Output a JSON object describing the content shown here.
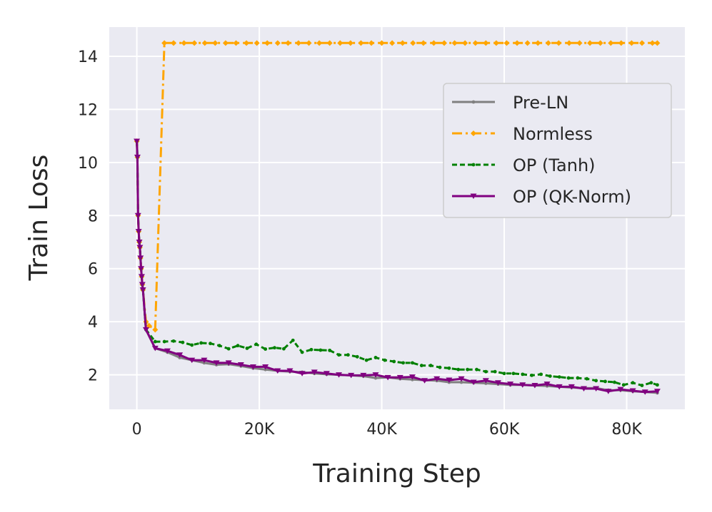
{
  "chart_data": {
    "type": "line",
    "title": "",
    "xlabel": "Training Step",
    "ylabel": "Train Loss",
    "xlim": [
      -4500,
      89500
    ],
    "ylim": [
      0.7,
      15.1
    ],
    "xticks": [
      0,
      20000,
      40000,
      60000,
      80000
    ],
    "xtick_labels": [
      "0",
      "20K",
      "40K",
      "60K",
      "80K"
    ],
    "yticks": [
      2,
      4,
      6,
      8,
      10,
      12,
      14
    ],
    "ytick_labels": [
      "2",
      "4",
      "6",
      "8",
      "10",
      "12",
      "14"
    ],
    "grid": true,
    "legend_position": "upper-right",
    "series": [
      {
        "name": "Pre-LN",
        "color": "#808080",
        "dash": "",
        "marker": "point",
        "x": [
          0,
          100,
          200,
          300,
          400,
          500,
          600,
          700,
          800,
          900,
          1000,
          1500,
          3000,
          5000,
          7000,
          9000,
          11000,
          13000,
          15000,
          17000,
          19000,
          21000,
          23000,
          25000,
          27000,
          29000,
          31000,
          33000,
          35000,
          37000,
          39000,
          41000,
          43000,
          45000,
          47000,
          49000,
          51000,
          53000,
          55000,
          57000,
          59000,
          61000,
          63000,
          65000,
          67000,
          69000,
          71000,
          73000,
          75000,
          77000,
          79000,
          81000,
          83000,
          85000
        ],
        "y": [
          10.8,
          10.2,
          8.0,
          7.4,
          7.0,
          6.8,
          6.4,
          6.0,
          5.7,
          5.4,
          5.2,
          3.7,
          3.0,
          2.85,
          2.65,
          2.55,
          2.45,
          2.38,
          2.4,
          2.33,
          2.25,
          2.2,
          2.15,
          2.12,
          2.1,
          2.05,
          2.02,
          2.0,
          1.98,
          1.95,
          1.88,
          1.9,
          1.85,
          1.82,
          1.8,
          1.78,
          1.72,
          1.72,
          1.7,
          1.68,
          1.65,
          1.62,
          1.62,
          1.6,
          1.58,
          1.55,
          1.52,
          1.5,
          1.5,
          1.42,
          1.42,
          1.38,
          1.35,
          1.32
        ]
      },
      {
        "name": "Normless",
        "color": "#ffa500",
        "dash": "14,5,3,5",
        "marker": "diamond",
        "x": [
          0,
          100,
          200,
          300,
          400,
          500,
          600,
          700,
          800,
          900,
          1000,
          1500,
          2000,
          3000,
          4500,
          6000,
          7700,
          9400,
          11100,
          12800,
          14500,
          16200,
          17900,
          19600,
          21300,
          23000,
          24700,
          26400,
          28100,
          29800,
          31500,
          33200,
          34900,
          36600,
          38300,
          40000,
          41700,
          43400,
          45100,
          46800,
          48500,
          50200,
          51900,
          53600,
          55300,
          57000,
          58700,
          60400,
          62100,
          63800,
          65500,
          67200,
          68900,
          70600,
          72300,
          74000,
          75700,
          77400,
          79100,
          80800,
          82500,
          84200,
          85000
        ],
        "y": [
          10.8,
          10.2,
          8.0,
          7.4,
          7.0,
          6.8,
          6.4,
          6.0,
          5.7,
          5.4,
          5.2,
          4.0,
          3.85,
          3.7,
          14.5,
          14.5,
          14.5,
          14.5,
          14.5,
          14.5,
          14.5,
          14.5,
          14.5,
          14.5,
          14.5,
          14.5,
          14.5,
          14.5,
          14.5,
          14.5,
          14.5,
          14.5,
          14.5,
          14.5,
          14.5,
          14.5,
          14.5,
          14.5,
          14.5,
          14.5,
          14.5,
          14.5,
          14.5,
          14.5,
          14.5,
          14.5,
          14.5,
          14.5,
          14.5,
          14.5,
          14.5,
          14.5,
          14.5,
          14.5,
          14.5,
          14.5,
          14.5,
          14.5,
          14.5,
          14.5,
          14.5,
          14.5,
          14.5
        ]
      },
      {
        "name": "OP (Tanh)",
        "color": "#008000",
        "dash": "7,4",
        "marker": "point",
        "x": [
          0,
          100,
          200,
          300,
          400,
          500,
          600,
          700,
          800,
          900,
          1000,
          1500,
          3000,
          4500,
          6000,
          7500,
          9000,
          10500,
          12000,
          13500,
          15000,
          16500,
          18000,
          19500,
          21000,
          22500,
          24000,
          25500,
          27000,
          28500,
          30000,
          31500,
          33000,
          34500,
          36000,
          37500,
          39000,
          40500,
          42000,
          43500,
          45000,
          46500,
          48000,
          49500,
          51000,
          52500,
          54000,
          55500,
          57000,
          58500,
          60000,
          61500,
          63000,
          64500,
          66000,
          67500,
          69000,
          70500,
          72000,
          73500,
          75000,
          76500,
          78000,
          79500,
          81000,
          82500,
          84000,
          85000
        ],
        "y": [
          10.8,
          10.2,
          8.0,
          7.4,
          7.0,
          6.8,
          6.4,
          6.0,
          5.7,
          5.4,
          5.2,
          3.7,
          3.25,
          3.25,
          3.27,
          3.22,
          3.12,
          3.2,
          3.18,
          3.1,
          2.98,
          3.1,
          3.0,
          3.15,
          2.97,
          3.02,
          2.98,
          3.3,
          2.85,
          2.95,
          2.93,
          2.92,
          2.75,
          2.75,
          2.68,
          2.55,
          2.65,
          2.55,
          2.5,
          2.45,
          2.45,
          2.35,
          2.35,
          2.28,
          2.25,
          2.2,
          2.2,
          2.2,
          2.12,
          2.12,
          2.05,
          2.05,
          2.02,
          1.98,
          2.02,
          1.95,
          1.92,
          1.88,
          1.88,
          1.85,
          1.78,
          1.75,
          1.72,
          1.62,
          1.7,
          1.6,
          1.7,
          1.62
        ]
      },
      {
        "name": "OP (QK-Norm)",
        "color": "#800080",
        "dash": "",
        "marker": "triangle",
        "x": [
          0,
          100,
          200,
          300,
          400,
          500,
          600,
          700,
          800,
          900,
          1000,
          1500,
          3000,
          5000,
          7000,
          9000,
          11000,
          13000,
          15000,
          17000,
          19000,
          21000,
          23000,
          25000,
          27000,
          29000,
          31000,
          33000,
          35000,
          37000,
          39000,
          41000,
          43000,
          45000,
          47000,
          49000,
          51000,
          53000,
          55000,
          57000,
          59000,
          61000,
          63000,
          65000,
          67000,
          69000,
          71000,
          73000,
          75000,
          77000,
          79000,
          81000,
          83000,
          85000
        ],
        "y": [
          10.8,
          10.2,
          8.0,
          7.4,
          7.0,
          6.8,
          6.4,
          6.0,
          5.7,
          5.4,
          5.2,
          3.7,
          3.0,
          2.9,
          2.75,
          2.55,
          2.55,
          2.45,
          2.45,
          2.38,
          2.3,
          2.3,
          2.15,
          2.15,
          2.05,
          2.1,
          2.05,
          2.0,
          1.98,
          1.98,
          2.0,
          1.9,
          1.9,
          1.92,
          1.78,
          1.85,
          1.8,
          1.85,
          1.72,
          1.78,
          1.7,
          1.65,
          1.62,
          1.6,
          1.65,
          1.55,
          1.55,
          1.48,
          1.48,
          1.38,
          1.45,
          1.4,
          1.35,
          1.38
        ]
      }
    ]
  }
}
